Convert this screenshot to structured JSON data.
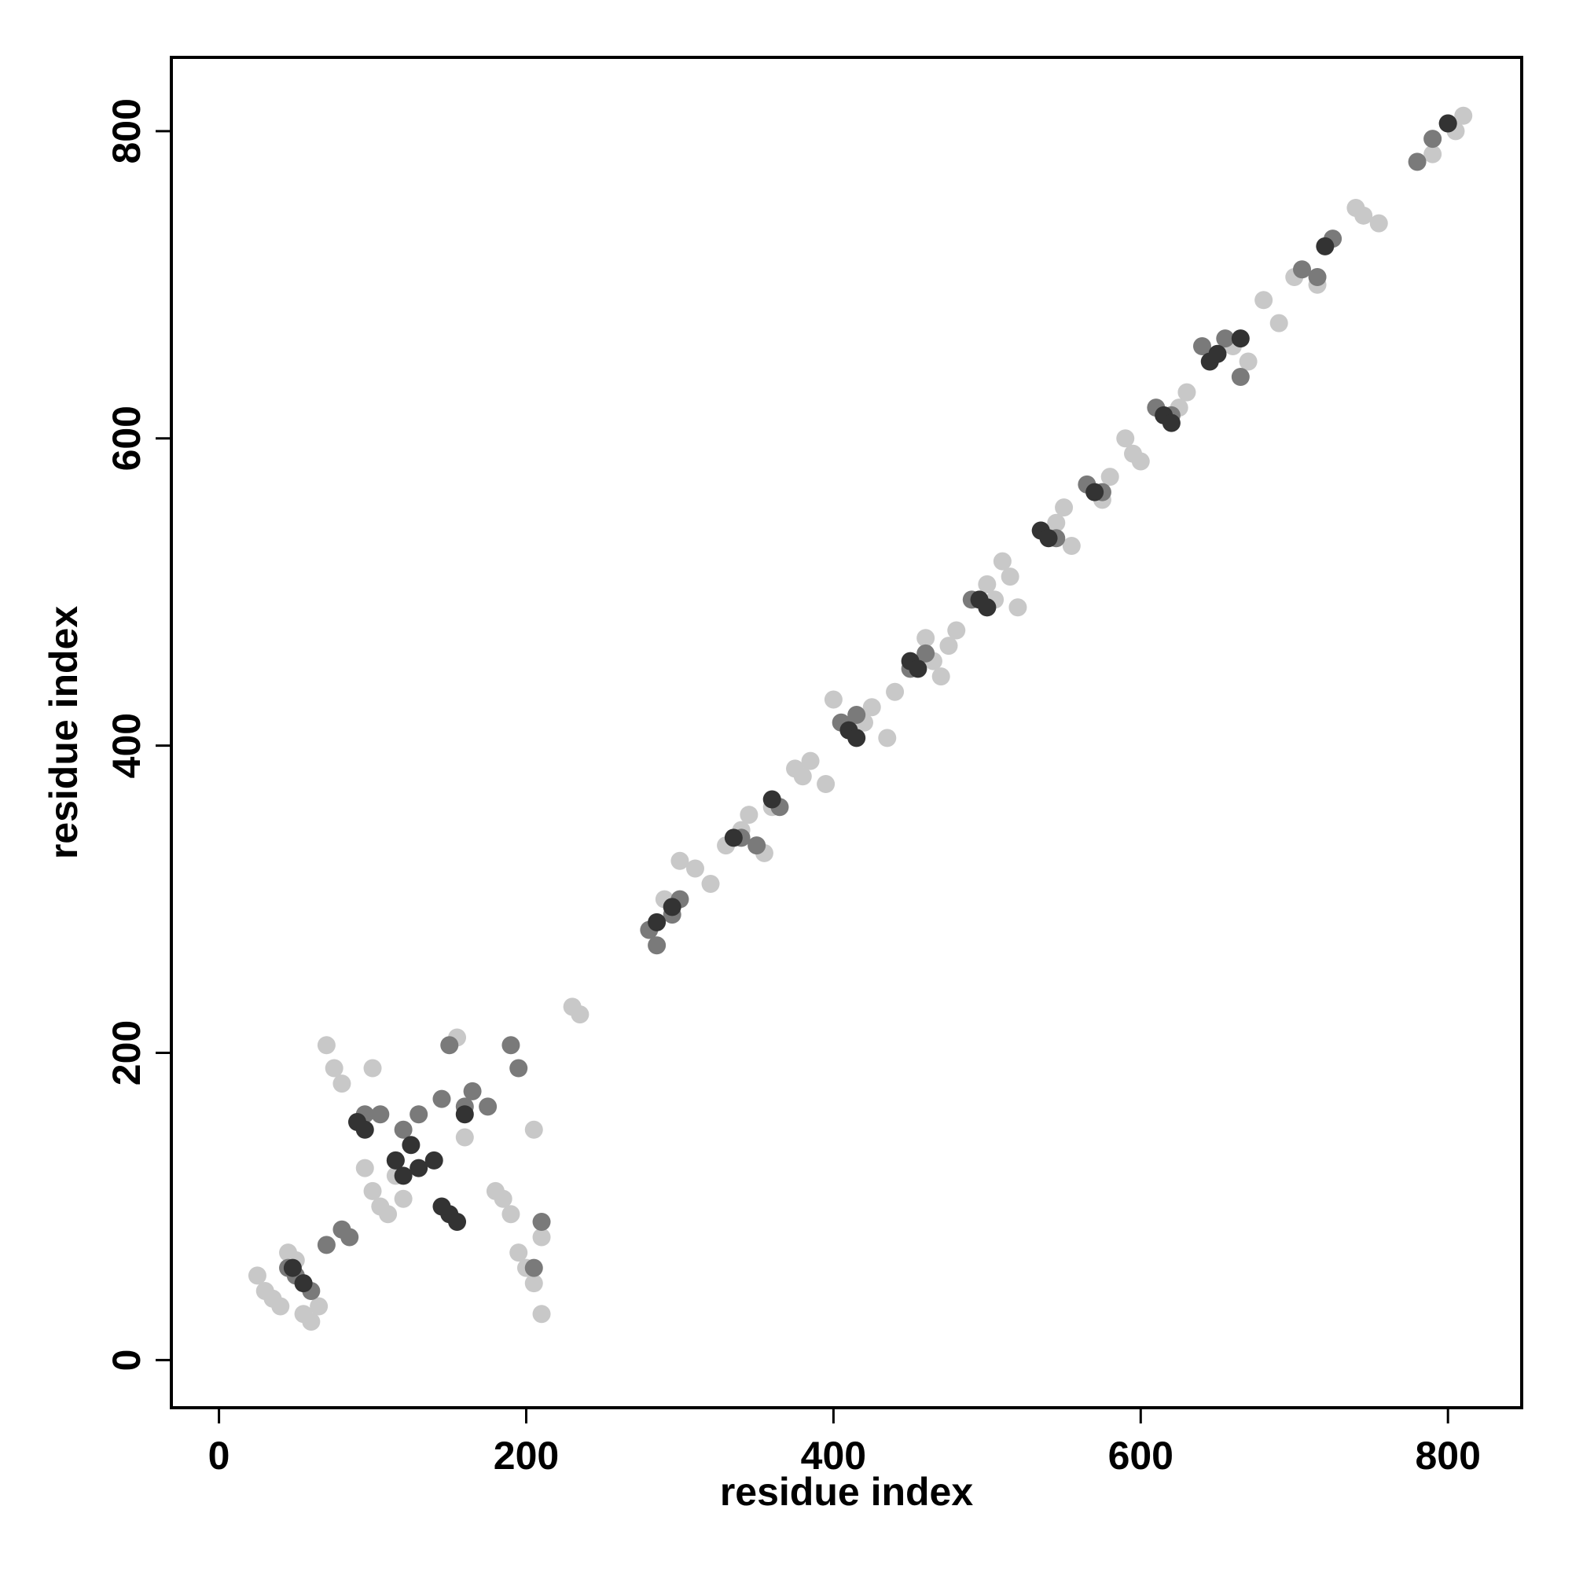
{
  "chart_data": {
    "type": "scatter",
    "xlabel": "residue index",
    "ylabel": "residue index",
    "xlim": [
      -31,
      848
    ],
    "ylim": [
      -31,
      848
    ],
    "xticks": [
      0,
      200,
      400,
      600,
      800
    ],
    "yticks": [
      0,
      200,
      400,
      600,
      800
    ],
    "series": [
      {
        "color": "#c8c8c8",
        "x": [
          30,
          35,
          40,
          50,
          55,
          60,
          65,
          25,
          45,
          55,
          100,
          105,
          110,
          115,
          120,
          95,
          180,
          185,
          190,
          195,
          200,
          205,
          210,
          205,
          210,
          230,
          235,
          290,
          300,
          310,
          320,
          330,
          340,
          345,
          355,
          360,
          375,
          380,
          385,
          395,
          400,
          420,
          425,
          435,
          440,
          460,
          465,
          470,
          475,
          480,
          500,
          505,
          510,
          515,
          520,
          545,
          550,
          555,
          575,
          580,
          590,
          595,
          600,
          620,
          625,
          630,
          660,
          670,
          680,
          690,
          700,
          715,
          740,
          745,
          755,
          790,
          805,
          810,
          155,
          160,
          100,
          70,
          75,
          80
        ],
        "y": [
          45,
          40,
          35,
          65,
          30,
          25,
          35,
          55,
          70,
          50,
          110,
          100,
          95,
          120,
          105,
          125,
          110,
          105,
          95,
          70,
          60,
          50,
          30,
          150,
          80,
          230,
          225,
          300,
          325,
          320,
          310,
          335,
          345,
          355,
          330,
          360,
          385,
          380,
          390,
          375,
          430,
          415,
          425,
          405,
          435,
          470,
          455,
          445,
          465,
          475,
          505,
          495,
          520,
          510,
          490,
          545,
          555,
          530,
          560,
          575,
          600,
          590,
          585,
          615,
          620,
          630,
          660,
          650,
          690,
          675,
          705,
          700,
          750,
          745,
          740,
          785,
          800,
          810,
          210,
          145,
          190,
          205,
          190,
          180
        ]
      },
      {
        "color": "#7a7a7a",
        "x": [
          45,
          50,
          60,
          70,
          80,
          85,
          95,
          105,
          120,
          130,
          145,
          160,
          165,
          175,
          190,
          195,
          210,
          280,
          285,
          295,
          300,
          340,
          350,
          365,
          405,
          415,
          450,
          460,
          490,
          500,
          535,
          545,
          565,
          575,
          610,
          620,
          640,
          655,
          665,
          705,
          715,
          725,
          780,
          790,
          800,
          205,
          150,
          115
        ],
        "y": [
          60,
          55,
          45,
          75,
          85,
          80,
          160,
          160,
          150,
          160,
          170,
          165,
          175,
          165,
          205,
          190,
          90,
          280,
          270,
          290,
          300,
          340,
          335,
          360,
          415,
          420,
          450,
          460,
          495,
          490,
          540,
          535,
          570,
          565,
          620,
          615,
          660,
          665,
          640,
          710,
          705,
          730,
          780,
          795,
          805,
          60,
          205,
          130
        ]
      },
      {
        "color": "#333333",
        "x": [
          48,
          55,
          90,
          95,
          115,
          120,
          125,
          130,
          140,
          150,
          155,
          160,
          145,
          285,
          295,
          335,
          360,
          410,
          415,
          450,
          455,
          495,
          500,
          535,
          540,
          570,
          615,
          620,
          645,
          650,
          665,
          720,
          800
        ],
        "y": [
          60,
          50,
          155,
          150,
          130,
          120,
          140,
          125,
          130,
          95,
          90,
          160,
          100,
          285,
          295,
          340,
          365,
          410,
          405,
          455,
          450,
          495,
          490,
          540,
          535,
          565,
          615,
          610,
          650,
          655,
          665,
          725,
          805
        ]
      }
    ]
  }
}
